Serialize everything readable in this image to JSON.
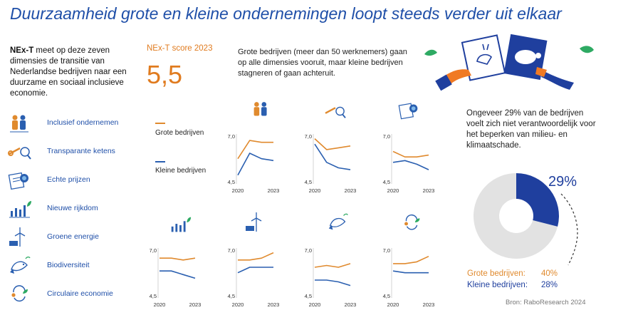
{
  "title": "Duurzaamheid grote en kleine ondernemingen loopt steeds verder uit elkaar",
  "intro": {
    "bold": "NEx-T",
    "text": " meet op deze zeven dimensies de transitie van Nederlandse bedrijven naar een duurzame en sociaal inclusieve economie."
  },
  "dimensions": [
    {
      "label": "Inclusief ondernemen",
      "icon": "people-icon"
    },
    {
      "label": "Transparante ketens",
      "icon": "chain-magnifier-icon"
    },
    {
      "label": "Echte prijzen",
      "icon": "price-tag-icon"
    },
    {
      "label": "Nieuwe rijkdom",
      "icon": "bar-growth-icon"
    },
    {
      "label": "Groene energie",
      "icon": "wind-solar-icon"
    },
    {
      "label": "Biodiversiteit",
      "icon": "fish-icon"
    },
    {
      "label": "Circulaire economie",
      "icon": "recycle-icon"
    }
  ],
  "score": {
    "label": "NEx-T score 2023",
    "value": "5,5"
  },
  "legend": {
    "big": "Grote bedrijven",
    "small": "Kleine bedrijven"
  },
  "big_desc": "Grote bedrijven (meer dan 50 werknemers) gaan op alle dimensies vooruit, maar kleine bedrijven stagneren of gaan achteruit.",
  "right_desc": "Ongeveer 29% van de bedrijven voelt zich niet verantwoordelijk voor het beperken van milieu- en klimaatschade.",
  "donut": {
    "percent_label": "29%",
    "value": 29
  },
  "stats": {
    "big_label": "Grote bedrijven:",
    "big_value": "40%",
    "small_label": "Kleine bedrijven:",
    "small_value": "28%"
  },
  "source": "Bron: RaboResearch 2024",
  "colors": {
    "big": "#e08a2e",
    "small": "#2a5fb0",
    "donut_fill": "#1f3f9e",
    "donut_rest": "#e2e2e2",
    "title": "#1f4fa8"
  },
  "chart_data": [
    {
      "type": "line",
      "title": "Inclusief ondernemen",
      "x": [
        2020,
        2021,
        2022,
        2023
      ],
      "ylim": [
        4.5,
        7.0
      ],
      "ytick_labels": [
        "7,0",
        "4,5"
      ],
      "xtick_labels": [
        "2020",
        "2023"
      ],
      "series": [
        {
          "name": "Grote bedrijven",
          "values": [
            5.8,
            6.8,
            6.7,
            6.7
          ]
        },
        {
          "name": "Kleine bedrijven",
          "values": [
            4.9,
            6.1,
            5.8,
            5.7
          ]
        }
      ]
    },
    {
      "type": "line",
      "title": "Transparante ketens",
      "x": [
        2020,
        2021,
        2022,
        2023
      ],
      "ylim": [
        4.5,
        7.0
      ],
      "ytick_labels": [
        "7,0",
        "4,5"
      ],
      "xtick_labels": [
        "2020",
        "2023"
      ],
      "series": [
        {
          "name": "Grote bedrijven",
          "values": [
            6.9,
            6.3,
            6.4,
            6.5
          ]
        },
        {
          "name": "Kleine bedrijven",
          "values": [
            6.6,
            5.6,
            5.3,
            5.2
          ]
        }
      ]
    },
    {
      "type": "line",
      "title": "Echte prijzen",
      "x": [
        2020,
        2021,
        2022,
        2023
      ],
      "ylim": [
        4.5,
        7.0
      ],
      "ytick_labels": [
        "7,0",
        "4,5"
      ],
      "xtick_labels": [
        "2020",
        "2023"
      ],
      "series": [
        {
          "name": "Grote bedrijven",
          "values": [
            6.2,
            5.9,
            5.9,
            6.0
          ]
        },
        {
          "name": "Kleine bedrijven",
          "values": [
            5.6,
            5.7,
            5.5,
            5.2
          ]
        }
      ]
    },
    {
      "type": "line",
      "title": "Nieuwe rijkdom",
      "x": [
        2020,
        2021,
        2022,
        2023
      ],
      "ylim": [
        4.5,
        7.0
      ],
      "ytick_labels": [
        "7,0",
        "4,5"
      ],
      "xtick_labels": [
        "2020",
        "2023"
      ],
      "series": [
        {
          "name": "Grote bedrijven",
          "values": [
            6.6,
            6.6,
            6.5,
            6.6
          ]
        },
        {
          "name": "Kleine bedrijven",
          "values": [
            5.9,
            5.9,
            5.7,
            5.5
          ]
        }
      ]
    },
    {
      "type": "line",
      "title": "Groene energie",
      "x": [
        2020,
        2021,
        2022,
        2023
      ],
      "ylim": [
        4.5,
        7.0
      ],
      "ytick_labels": [
        "7,0",
        "4,5"
      ],
      "xtick_labels": [
        "2020",
        "2023"
      ],
      "series": [
        {
          "name": "Grote bedrijven",
          "values": [
            6.5,
            6.5,
            6.6,
            6.9
          ]
        },
        {
          "name": "Kleine bedrijven",
          "values": [
            5.8,
            6.1,
            6.1,
            6.1
          ]
        }
      ]
    },
    {
      "type": "line",
      "title": "Biodiversiteit",
      "x": [
        2020,
        2021,
        2022,
        2023
      ],
      "ylim": [
        4.5,
        7.0
      ],
      "ytick_labels": [
        "7,0",
        "4,5"
      ],
      "xtick_labels": [
        "2020",
        "2023"
      ],
      "series": [
        {
          "name": "Grote bedrijven",
          "values": [
            6.1,
            6.2,
            6.1,
            6.3
          ]
        },
        {
          "name": "Kleine bedrijven",
          "values": [
            5.4,
            5.4,
            5.3,
            5.1
          ]
        }
      ]
    },
    {
      "type": "line",
      "title": "Circulaire economie",
      "x": [
        2020,
        2021,
        2022,
        2023
      ],
      "ylim": [
        4.5,
        7.0
      ],
      "ytick_labels": [
        "7,0",
        "4,5"
      ],
      "xtick_labels": [
        "2020",
        "2023"
      ],
      "series": [
        {
          "name": "Grote bedrijven",
          "values": [
            6.3,
            6.3,
            6.4,
            6.7
          ]
        },
        {
          "name": "Kleine bedrijven",
          "values": [
            5.9,
            5.8,
            5.8,
            5.8
          ]
        }
      ]
    }
  ]
}
